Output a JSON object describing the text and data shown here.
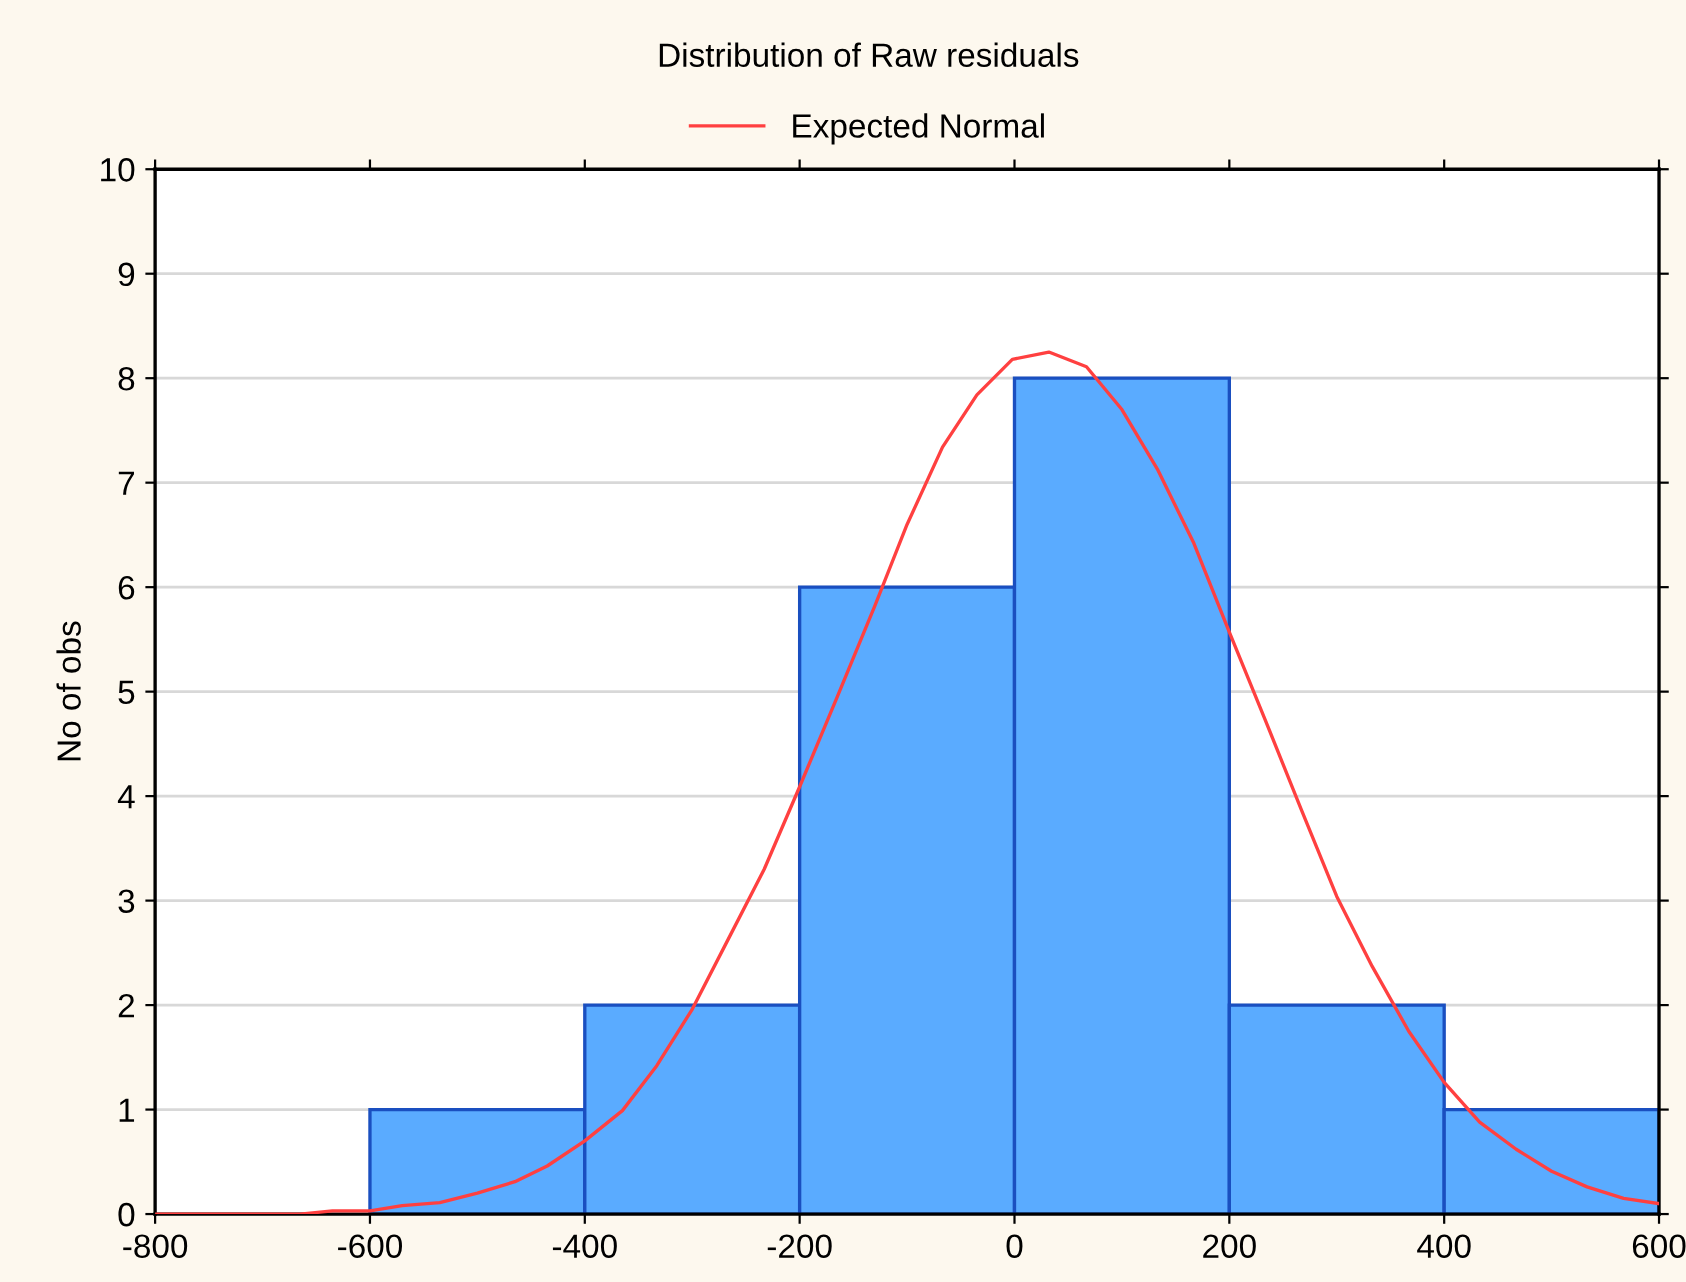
{
  "chart_data": {
    "type": "histogram",
    "title": "Distribution of Raw residuals",
    "ylabel": "No of obs",
    "bins": [
      -600,
      -400,
      -200,
      0,
      200,
      400,
      600
    ],
    "values": [
      1,
      2,
      6,
      8,
      2,
      1
    ],
    "color": "#5aabff",
    "series": [
      {
        "type": "line",
        "name": "Expected Normal",
        "color": "#ff4040",
        "x": [
          -800,
          -665,
          -635,
          -600,
          -570,
          -535,
          -500,
          -465,
          -435,
          -400,
          -365,
          -333,
          -300,
          -265,
          -233,
          -200,
          -165,
          -130,
          -100,
          -67,
          -35,
          -2,
          32,
          67,
          100,
          133,
          167,
          200,
          233,
          267,
          300,
          333,
          367,
          400,
          433,
          467,
          500,
          533,
          567,
          600
        ],
        "values": [
          0,
          0,
          0.03,
          0.03,
          0.08,
          0.11,
          0.2,
          0.31,
          0.46,
          0.7,
          0.99,
          1.42,
          1.96,
          2.66,
          3.3,
          4.09,
          4.95,
          5.82,
          6.6,
          7.34,
          7.84,
          8.18,
          8.25,
          8.11,
          7.7,
          7.13,
          6.42,
          5.57,
          4.74,
          3.87,
          3.04,
          2.37,
          1.75,
          1.26,
          0.88,
          0.62,
          0.41,
          0.26,
          0.15,
          0.1
        ]
      }
    ],
    "xlim": [
      -800,
      600
    ],
    "xticks": [
      -800,
      -600,
      -400,
      -200,
      0,
      200,
      400,
      600
    ],
    "ylim": [
      0,
      10
    ],
    "yticks": [
      0,
      1,
      2,
      3,
      4,
      5,
      6,
      7,
      8,
      9,
      10
    ],
    "grid": "y",
    "legend": "top"
  }
}
